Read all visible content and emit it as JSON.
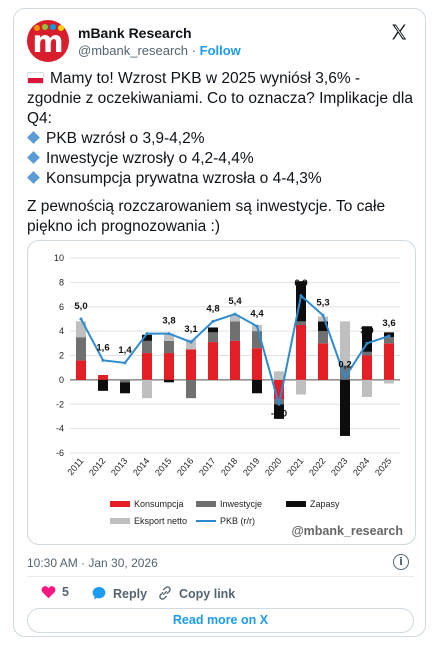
{
  "author": {
    "name": "mBank Research",
    "handle": "@mbank_research",
    "follow_label": "Follow",
    "separator": "·"
  },
  "tweet": {
    "line1": "Mamy to! Wzrost PKB w 2025 wyniósł 3,6% - zgodnie z oczekiwaniami. Co to oznacza? Implikacje dla Q4:",
    "bullets": [
      "PKB wzrósł o 3,9-4,2%",
      "Inwestycje wzrosły o 4,2-4,4%",
      "Konsumpcja prywatna wzrosła o 4-4,3%"
    ],
    "line2": "Z pewnością rozczarowaniem są inwestycje. To całe piękno ich prognozowania :)"
  },
  "chart_data": {
    "type": "bar",
    "categories": [
      "2011",
      "2012",
      "2013",
      "2014",
      "2015",
      "2016",
      "2017",
      "2018",
      "2019",
      "2020",
      "2021",
      "2022",
      "2023",
      "2024",
      "2025"
    ],
    "ylim": [
      -6,
      10
    ],
    "yticks": [
      -6,
      -4,
      -2,
      0,
      2,
      4,
      6,
      8,
      10
    ],
    "grid": true,
    "stacked": true,
    "series": [
      {
        "name": "Konsumpcja",
        "kind": "bar",
        "color": "#e31e24",
        "values": [
          1.6,
          0.4,
          0.0,
          2.2,
          2.2,
          2.5,
          3.1,
          3.2,
          2.6,
          -1.6,
          4.5,
          3.0,
          0.0,
          2.0,
          3.0
        ]
      },
      {
        "name": "Inwestycje",
        "kind": "bar",
        "color": "#707070",
        "values": [
          1.9,
          0.0,
          -0.2,
          1.0,
          1.0,
          -1.5,
          0.8,
          1.6,
          1.4,
          -0.4,
          0.3,
          1.0,
          1.2,
          0.3,
          0.5
        ]
      },
      {
        "name": "Zapasy",
        "kind": "bar",
        "color": "#0d0d0d",
        "values": [
          0.0,
          -0.9,
          -0.9,
          0.5,
          -0.2,
          0.0,
          0.4,
          0.0,
          -1.1,
          -1.2,
          3.3,
          0.8,
          -4.6,
          2.1,
          0.4
        ]
      },
      {
        "name": "Eksport netto",
        "kind": "bar",
        "color": "#bfbfbf",
        "values": [
          1.3,
          0.0,
          0.0,
          -1.5,
          0.6,
          0.8,
          0.0,
          0.5,
          0.5,
          0.7,
          -1.2,
          0.4,
          3.6,
          -1.4,
          -0.3
        ]
      },
      {
        "name": "PKB (r/r)",
        "kind": "line",
        "color": "#2e8bd0",
        "values": [
          5.0,
          1.6,
          1.4,
          3.8,
          3.8,
          3.1,
          4.8,
          5.4,
          4.4,
          -2.0,
          6.9,
          5.3,
          0.2,
          3.0,
          3.6
        ],
        "labels": [
          "5,0",
          "1,6",
          "1,4",
          "3,8",
          "3,8",
          "3,1",
          "4,8",
          "5,4",
          "4,4",
          "-2,0",
          "6,9",
          "5,3",
          "0,2",
          "3,0",
          "3,6"
        ]
      }
    ],
    "legend": [
      "Konsumpcja",
      "Inwestycje",
      "Zapasy",
      "Eksport netto",
      "PKB (r/r)"
    ],
    "legend_position": "bottom"
  },
  "chart_meta": {
    "watermark": "@mbank_research",
    "label_indices": [
      0,
      1,
      2,
      4,
      5,
      6,
      7,
      8,
      9,
      10,
      11,
      12,
      13,
      14
    ]
  },
  "footer": {
    "timestamp": "10:30 AM · Jan 30, 2026",
    "likes": "5",
    "reply_label": "Reply",
    "copy_label": "Copy link",
    "read_more": "Read more on X"
  },
  "colors": {
    "accent": "#1d9bf0",
    "like": "#f91880",
    "brand": "#d81e2c"
  },
  "icons": {
    "logo": "x-logo-icon",
    "info": "info-icon",
    "like": "heart-icon",
    "reply": "reply-icon",
    "copy": "link-icon"
  }
}
